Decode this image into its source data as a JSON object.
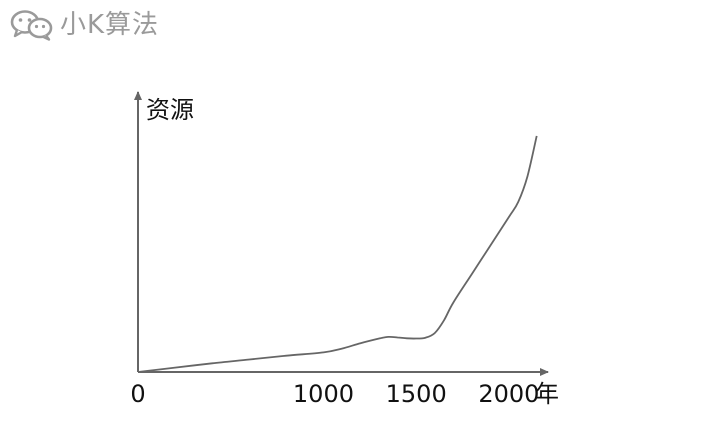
{
  "watermark": {
    "text": "小K算法",
    "icon": "wechat-icon"
  },
  "chart_data": {
    "type": "line",
    "title": "",
    "xlabel": "年",
    "ylabel": "资源",
    "x_ticks": [
      "0",
      "1000",
      "1500",
      "2000"
    ],
    "x_tick_values": [
      0,
      1000,
      1500,
      2000
    ],
    "xlim": [
      0,
      2200
    ],
    "ylim": [
      0,
      100
    ],
    "grid": false,
    "series": [
      {
        "color": "#666666",
        "x": [
          0,
          200,
          400,
          600,
          800,
          1000,
          1100,
          1200,
          1300,
          1350,
          1400,
          1450,
          1500,
          1550,
          1600,
          1650,
          1700,
          1800,
          1900,
          2000,
          2050,
          2100,
          2150
        ],
        "y": [
          0,
          1.6,
          3.2,
          4.6,
          6.0,
          7.2,
          8.6,
          10.6,
          12.3,
          12.9,
          12.7,
          12.4,
          12.3,
          12.6,
          14.3,
          19.0,
          25.5,
          36.0,
          46.5,
          57.0,
          62.5,
          72.0,
          86.8
        ]
      }
    ],
    "axis_color": "#666666"
  }
}
